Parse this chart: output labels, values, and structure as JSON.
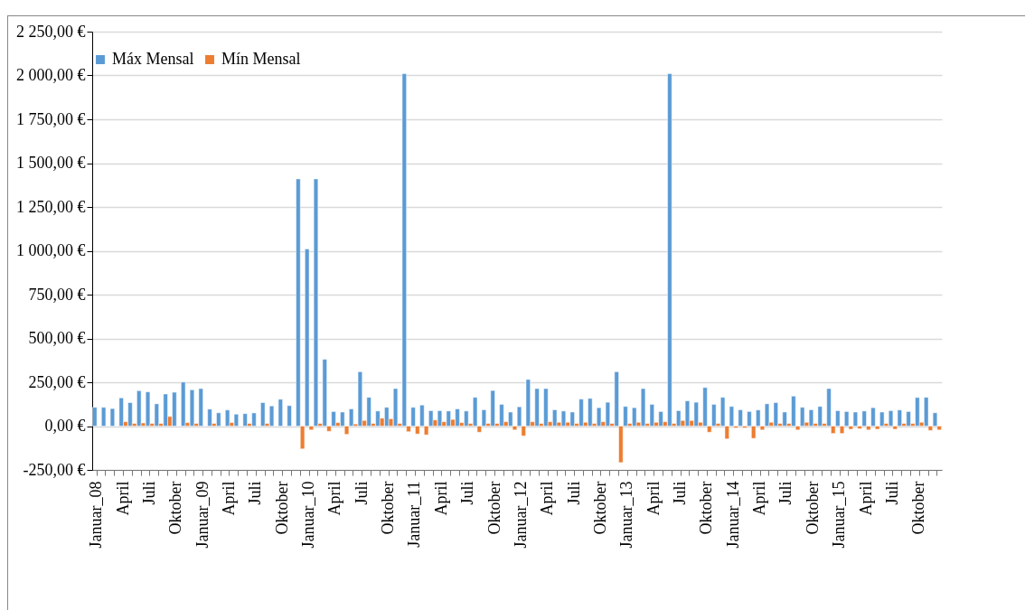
{
  "chart_data": {
    "type": "bar",
    "categories": [
      "Januar_08",
      null,
      null,
      "April",
      null,
      null,
      "Juli",
      null,
      null,
      "Oktober",
      null,
      null,
      "Januar_09",
      null,
      null,
      "April",
      null,
      null,
      "Juli",
      null,
      null,
      "Oktober",
      null,
      null,
      "Januar_10",
      null,
      null,
      "April",
      null,
      null,
      "Juli",
      null,
      null,
      "Oktober",
      null,
      null,
      "Januar_11",
      null,
      null,
      "April",
      null,
      null,
      "Juli",
      null,
      null,
      "Oktober",
      null,
      null,
      "Januar_12",
      null,
      null,
      "April",
      null,
      null,
      "Juli",
      null,
      null,
      "Oktober",
      null,
      null,
      "Januar_13",
      null,
      null,
      "April",
      null,
      null,
      "Juli",
      null,
      null,
      "Oktober",
      null,
      null,
      "Januar_14",
      null,
      null,
      "April",
      null,
      null,
      "Juli",
      null,
      null,
      "Oktober",
      null,
      null,
      "Januar_15",
      null,
      null,
      "April",
      null,
      null,
      "Juli",
      null,
      null,
      "Oktober",
      null,
      null
    ],
    "series": [
      {
        "name": "Máx Mensal",
        "color": "#5b9bd5",
        "values": [
          107,
          107,
          100,
          161,
          134,
          202,
          195,
          127,
          183,
          193,
          251,
          207,
          214,
          97,
          76,
          92,
          68,
          71,
          75,
          134,
          115,
          153,
          117,
          1410,
          1010,
          1410,
          381,
          83,
          80,
          98,
          310,
          164,
          86,
          107,
          214,
          2010,
          107,
          120,
          88,
          88,
          86,
          98,
          86,
          164,
          93,
          203,
          124,
          80,
          110,
          266,
          214,
          214,
          93,
          86,
          80,
          154,
          158,
          105,
          136,
          310,
          112,
          105,
          214,
          124,
          83,
          2010,
          88,
          144,
          136,
          220,
          124,
          164,
          112,
          93,
          83,
          92,
          127,
          134,
          80,
          171,
          107,
          93,
          112,
          214,
          88,
          83,
          80,
          86,
          105,
          80,
          88,
          92,
          83,
          163,
          164,
          76
        ]
      },
      {
        "name": "Mín Mensal",
        "color": "#ed7d31",
        "values": [
          null,
          null,
          null,
          25,
          15,
          18,
          15,
          15,
          55,
          null,
          20,
          15,
          null,
          15,
          null,
          20,
          null,
          15,
          null,
          15,
          null,
          null,
          null,
          -130,
          -22,
          15,
          -30,
          20,
          -47,
          12,
          32,
          15,
          45,
          42,
          15,
          -32,
          -45,
          -50,
          35,
          25,
          38,
          20,
          15,
          -35,
          15,
          15,
          25,
          -22,
          -56,
          25,
          15,
          25,
          22,
          22,
          15,
          22,
          15,
          25,
          15,
          -208,
          15,
          22,
          15,
          22,
          25,
          15,
          32,
          32,
          22,
          -35,
          15,
          -73,
          -10,
          -10,
          -70,
          -22,
          22,
          15,
          15,
          -22,
          22,
          15,
          15,
          -42,
          -42,
          -18,
          -15,
          -22,
          -18,
          15,
          -18,
          15,
          15,
          22,
          -25,
          -22
        ]
      }
    ],
    "ylim": [
      -250,
      2250
    ],
    "yticks": [
      {
        "value": -250,
        "label": "-250,00 €"
      },
      {
        "value": 0,
        "label": "0,00 €"
      },
      {
        "value": 250,
        "label": "250,00 €"
      },
      {
        "value": 500,
        "label": "500,00 €"
      },
      {
        "value": 750,
        "label": "750,00 €"
      },
      {
        "value": 1000,
        "label": "1 000,00 €"
      },
      {
        "value": 1250,
        "label": "1 250,00 €"
      },
      {
        "value": 1500,
        "label": "1 500,00 €"
      },
      {
        "value": 1750,
        "label": "1 750,00 €"
      },
      {
        "value": 2000,
        "label": "2 000,00 €"
      },
      {
        "value": 2250,
        "label": "2 250,00 €"
      }
    ],
    "grid": "y",
    "legend": "top"
  }
}
